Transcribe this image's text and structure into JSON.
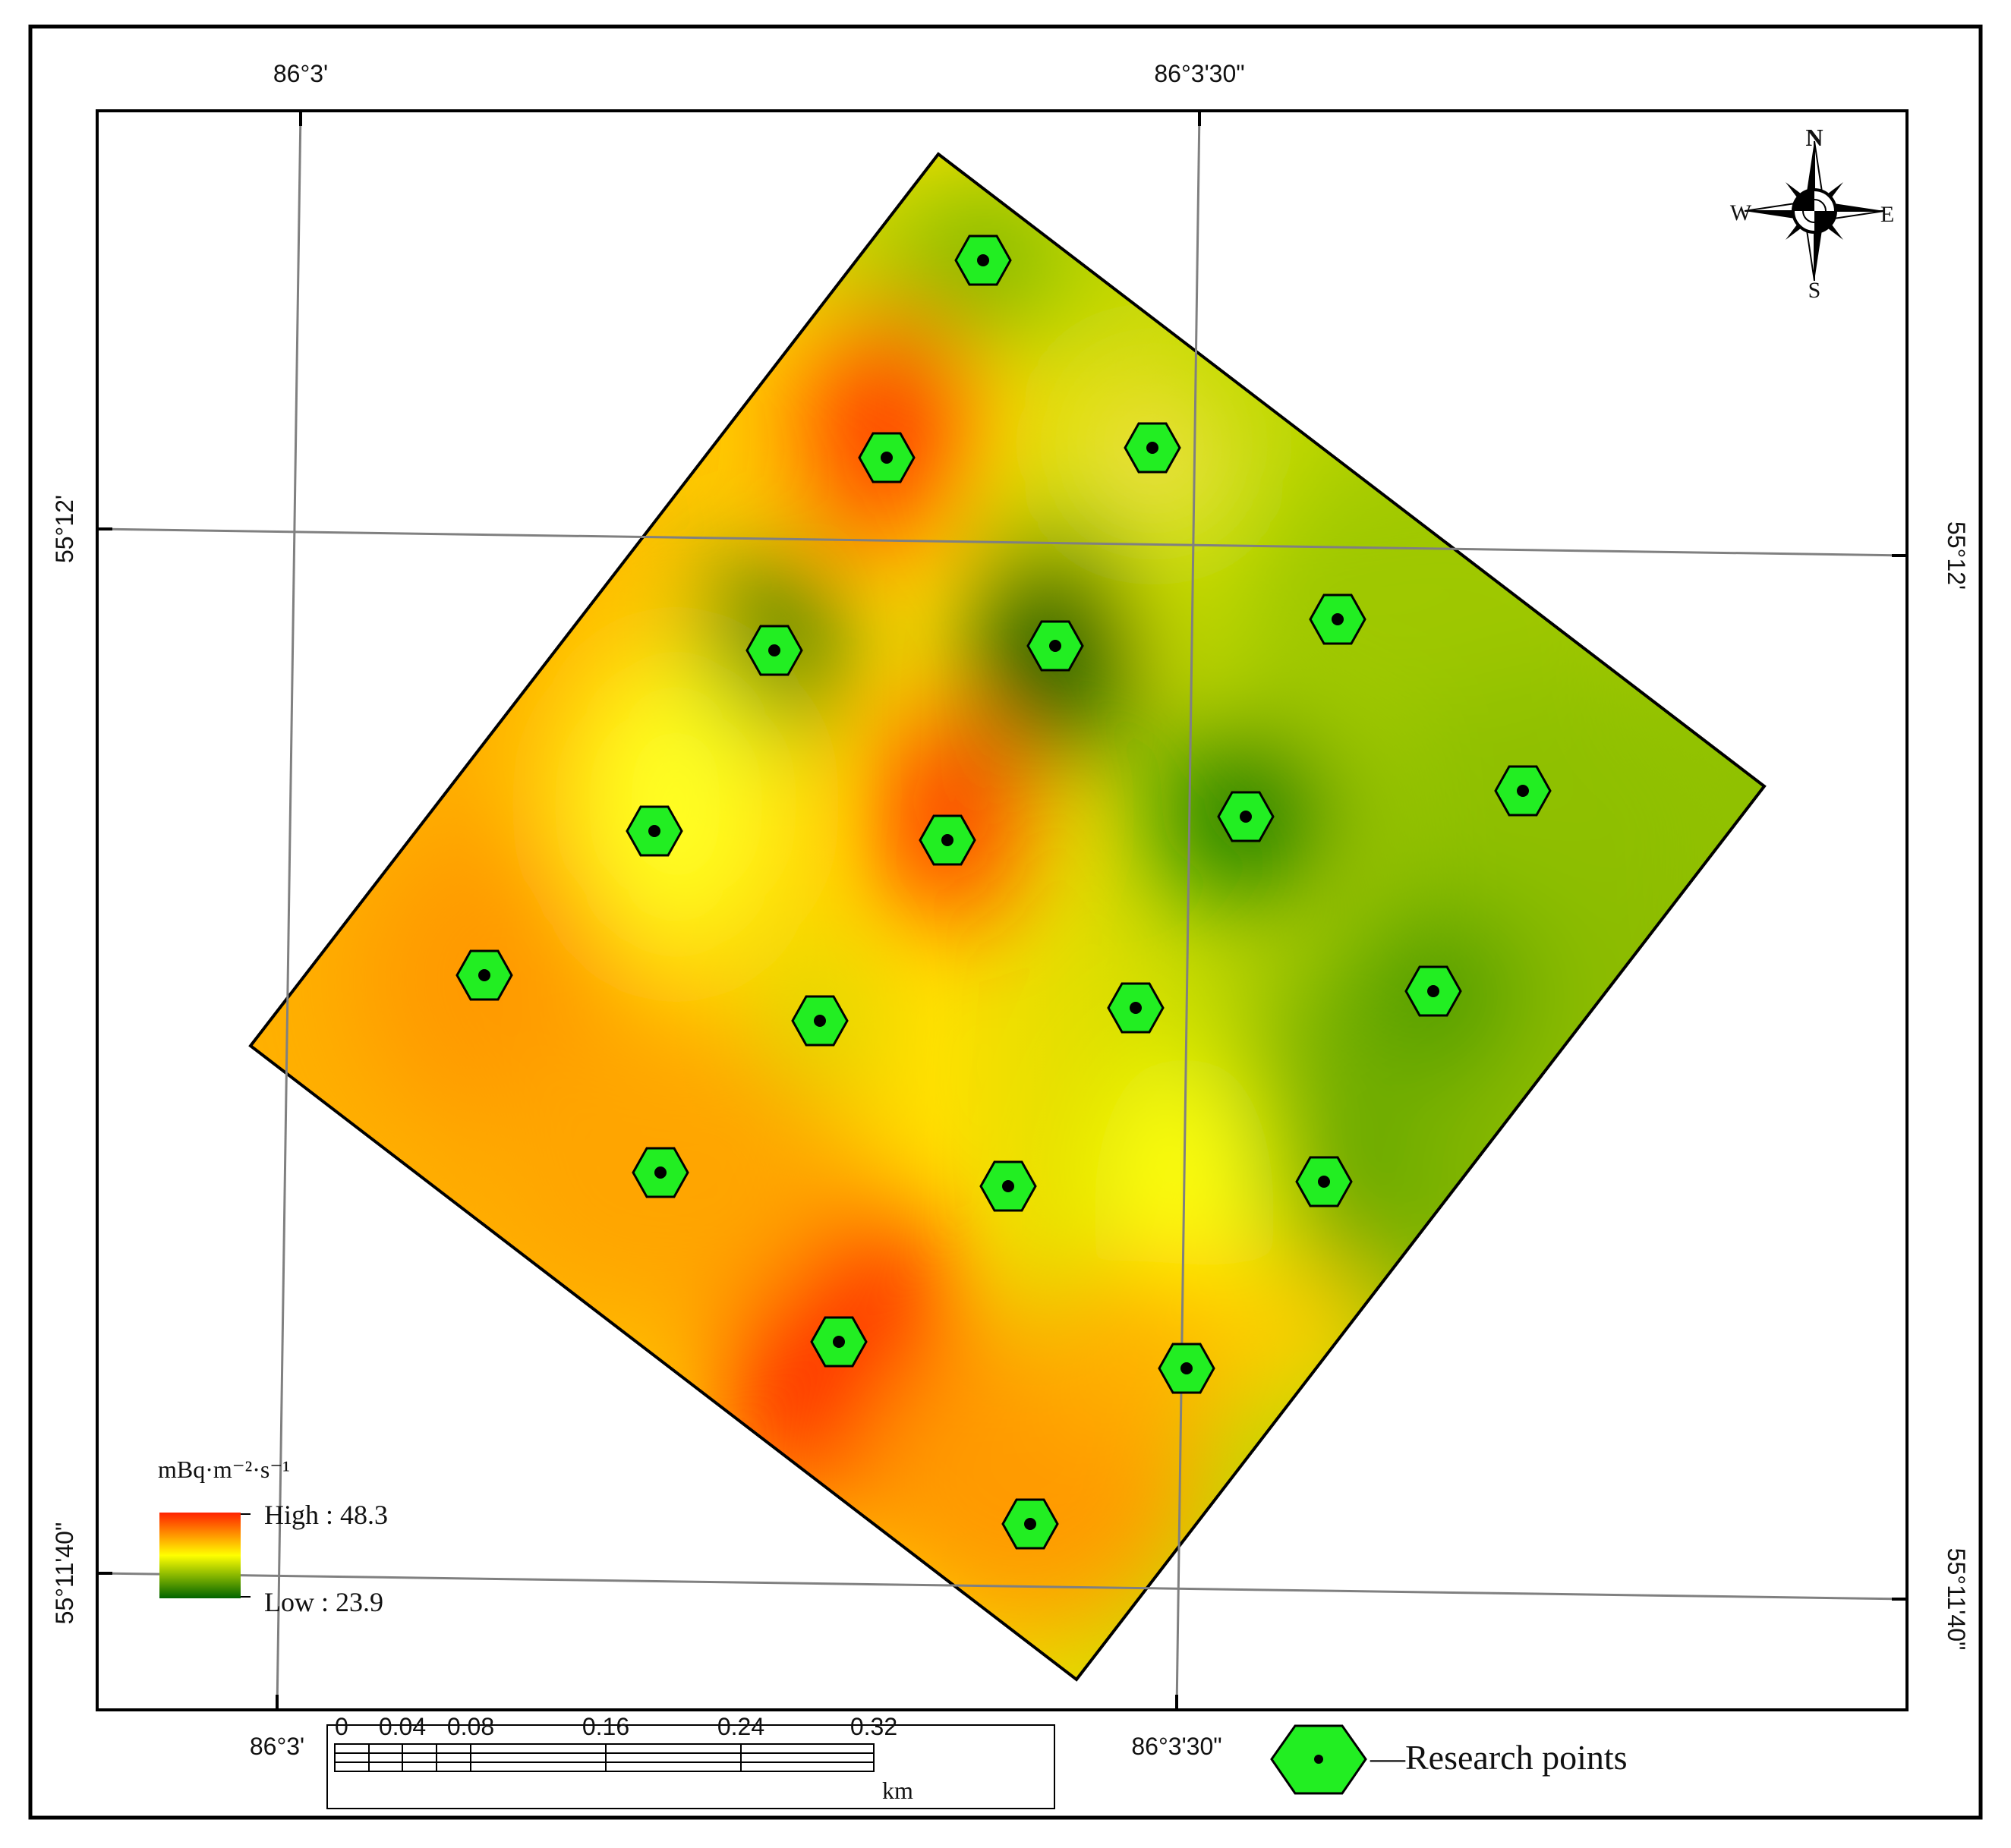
{
  "coordinates": {
    "top_left": "86°3'",
    "top_right": "86°3'30\"",
    "bottom_left": "86°3'",
    "bottom_right": "86°3'30\"",
    "left_upper": "55°12'",
    "left_lower": "55°11'40\"",
    "right_upper": "55°12'",
    "right_lower": "55°11'40\""
  },
  "compass": {
    "north": "N",
    "south": "S",
    "east": "E",
    "west": "W"
  },
  "legend": {
    "unit": "mBq·m⁻²·s⁻¹",
    "high_label": "High : 48.3",
    "low_label": "Low : 23.9",
    "colors": {
      "high": "#ff2200",
      "mid": "#ffff00",
      "low": "#006400"
    }
  },
  "scale_bar": {
    "ticks": [
      "0",
      "0.04",
      "0.08",
      "0.16",
      "0.24",
      "0.32"
    ],
    "unit": "km"
  },
  "research_legend": {
    "label": "—Research points"
  },
  "point_color": "#22ee22"
}
